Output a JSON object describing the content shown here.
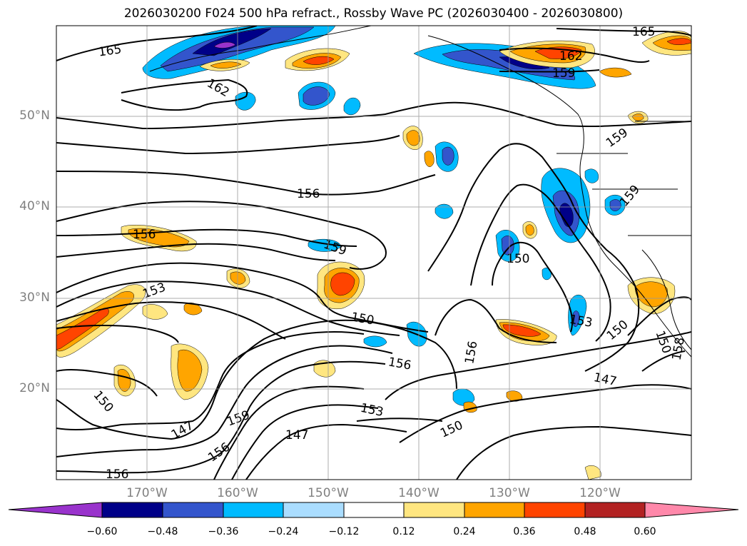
{
  "title": "2026030200 F024 500 hPa refract., Rossby Wave PC (2026030400 - 2026030800)",
  "lat_labels": [
    "50°N",
    "40°N",
    "30°N",
    "20°N"
  ],
  "lon_labels": [
    "170°W",
    "160°W",
    "150°W",
    "140°W",
    "130°W",
    "120°W"
  ],
  "contour_labels": [
    "165",
    "162",
    "165",
    "162",
    "159",
    "159",
    "159",
    "156",
    "156",
    "159",
    "150",
    "153",
    "150",
    "156",
    "156",
    "153",
    "150",
    "147",
    "150",
    "153",
    "150",
    "150",
    "159",
    "147",
    "156",
    "156",
    "147",
    "158"
  ],
  "colorbar": {
    "ticks": [
      "−0.60",
      "−0.48",
      "−0.36",
      "−0.24",
      "−0.12",
      "0.12",
      "0.24",
      "0.36",
      "0.48",
      "0.60"
    ],
    "colors": [
      "#9933cc",
      "#000088",
      "#3355cc",
      "#00bbff",
      "#aaddff",
      "#ffffff",
      "#ffe680",
      "#ffa500",
      "#ff4400",
      "#b22222",
      "#ff88aa"
    ]
  }
}
